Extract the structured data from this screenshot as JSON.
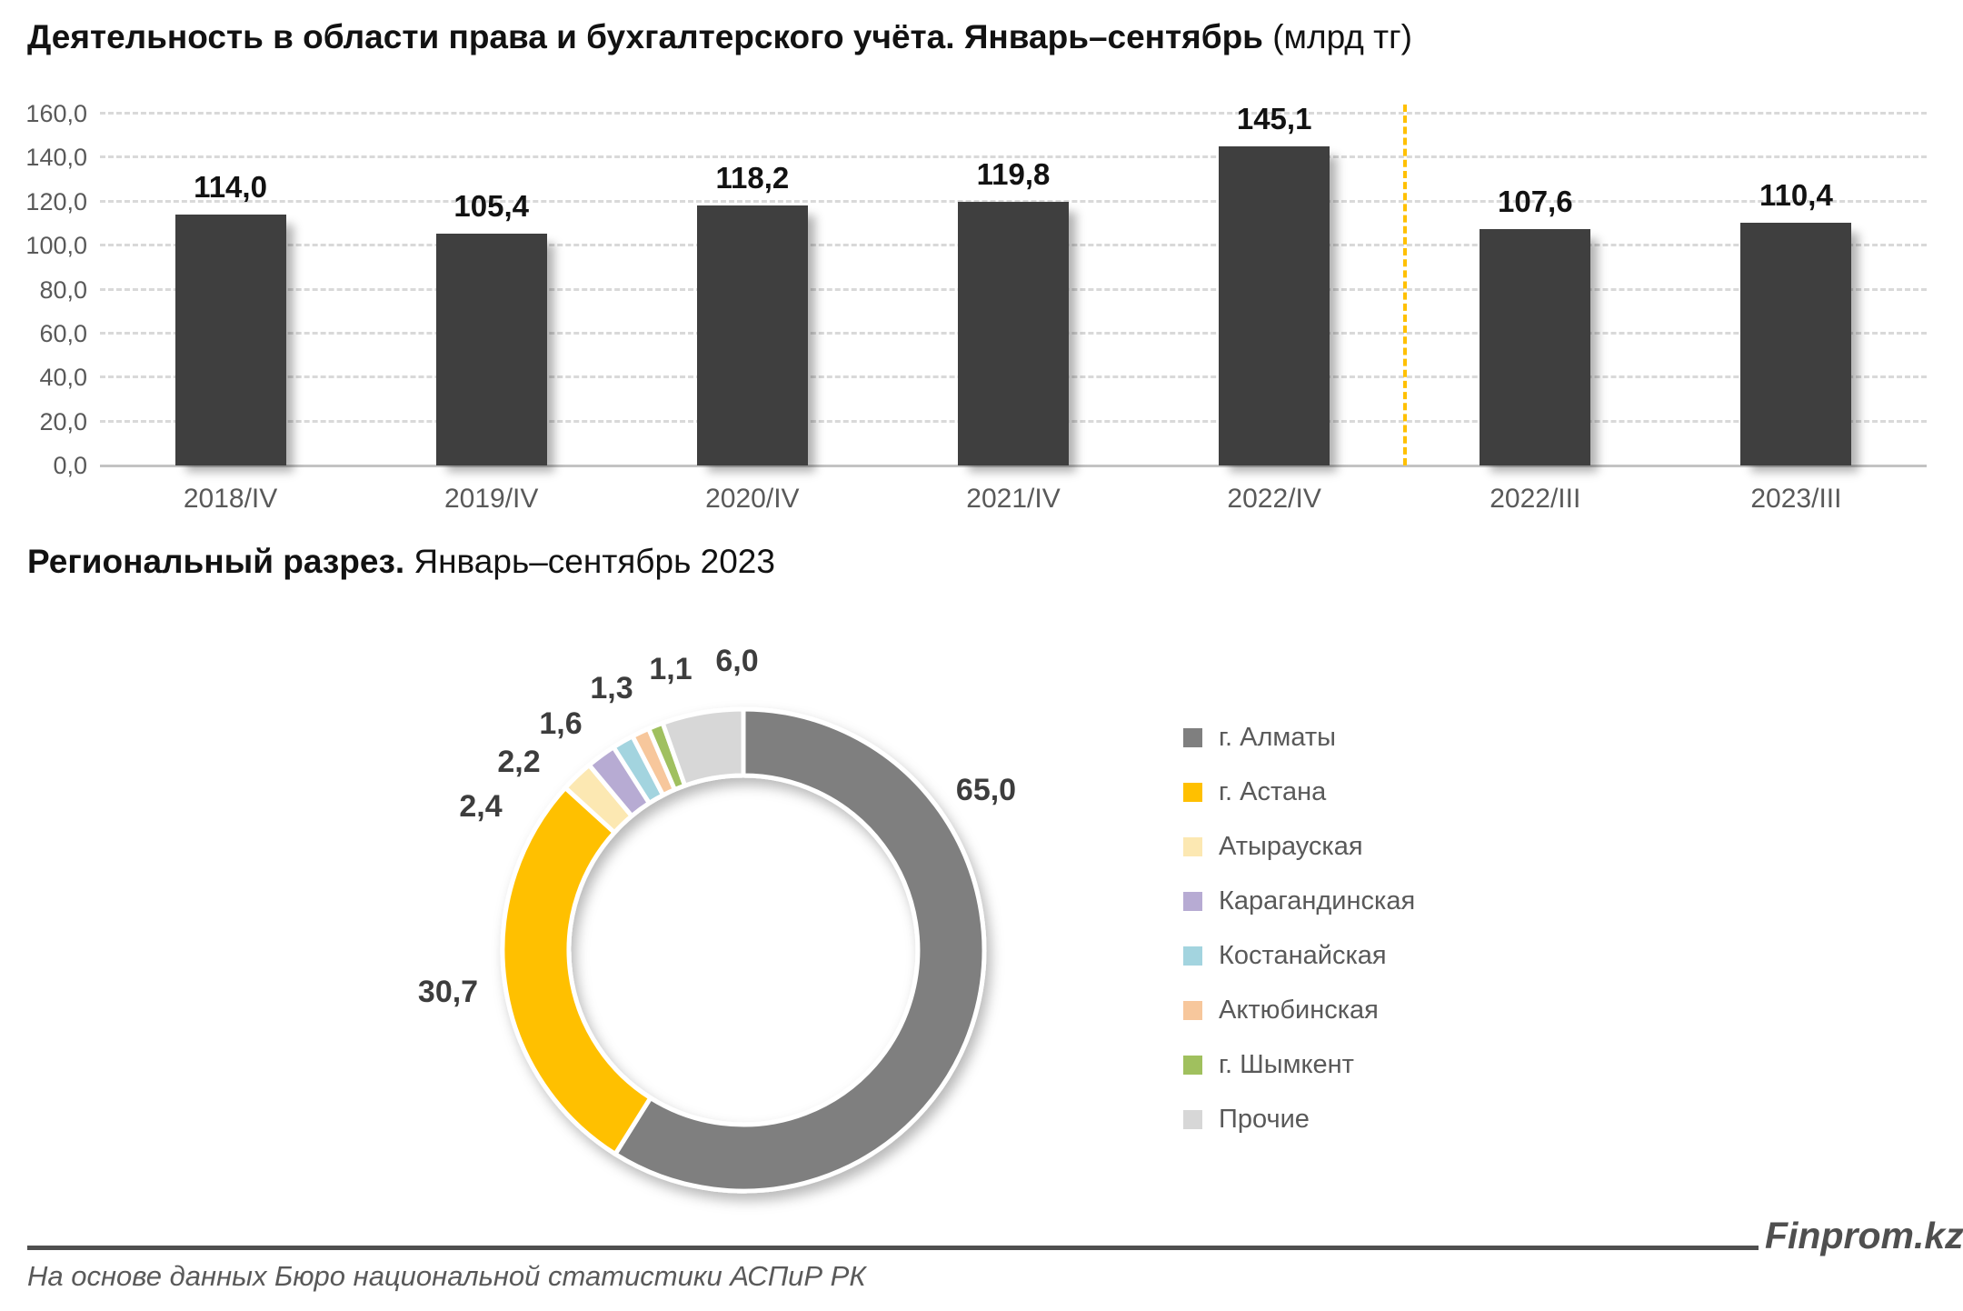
{
  "bar_section": {
    "title_main": "Деятельность в области права и бухгалтерского учёта. Январь–сентябрь",
    "title_unit": " (млрд тг)"
  },
  "donut_section": {
    "title_main": "Региональный разрез.",
    "title_rest": " Январь–сентябрь 2023"
  },
  "chart_data": [
    {
      "type": "bar",
      "title": "Деятельность в области права и бухгалтерского учёта. Январь–сентябрь (млрд тг)",
      "categories": [
        "2018/IV",
        "2019/IV",
        "2020/IV",
        "2021/IV",
        "2022/IV",
        "2022/III",
        "2023/III"
      ],
      "values": [
        114.0,
        105.4,
        118.2,
        119.8,
        145.1,
        107.6,
        110.4
      ],
      "ylim": [
        0,
        160
      ],
      "ytick_step": 20,
      "grid": true,
      "grid_style": "dashed",
      "bar_color": "#3f3f3f",
      "separator_after_index": 4,
      "separator_color": "#ffc000",
      "legend_position": "none"
    },
    {
      "type": "pie",
      "donut": true,
      "title": "Региональный разрез. Январь–сентябрь 2023",
      "labels": [
        "г. Алматы",
        "г. Астана",
        "Атырауская",
        "Карагандинская",
        "Костанайская",
        "Актюбинская",
        "г. Шымкент",
        "Прочие"
      ],
      "values": [
        65.0,
        30.7,
        2.4,
        2.2,
        1.6,
        1.3,
        1.1,
        6.0
      ],
      "colors": [
        "#7f7f7f",
        "#ffc000",
        "#fce8b2",
        "#b7abd3",
        "#a3d4df",
        "#f7c79c",
        "#a0c05e",
        "#d7d7d7"
      ],
      "legend_position": "right",
      "start_angle_deg": 0,
      "direction": "clockwise"
    }
  ],
  "footer": {
    "brand": "Finprom.kz",
    "source": "На основе данных Бюро национальной статистики АСПиР РК"
  }
}
